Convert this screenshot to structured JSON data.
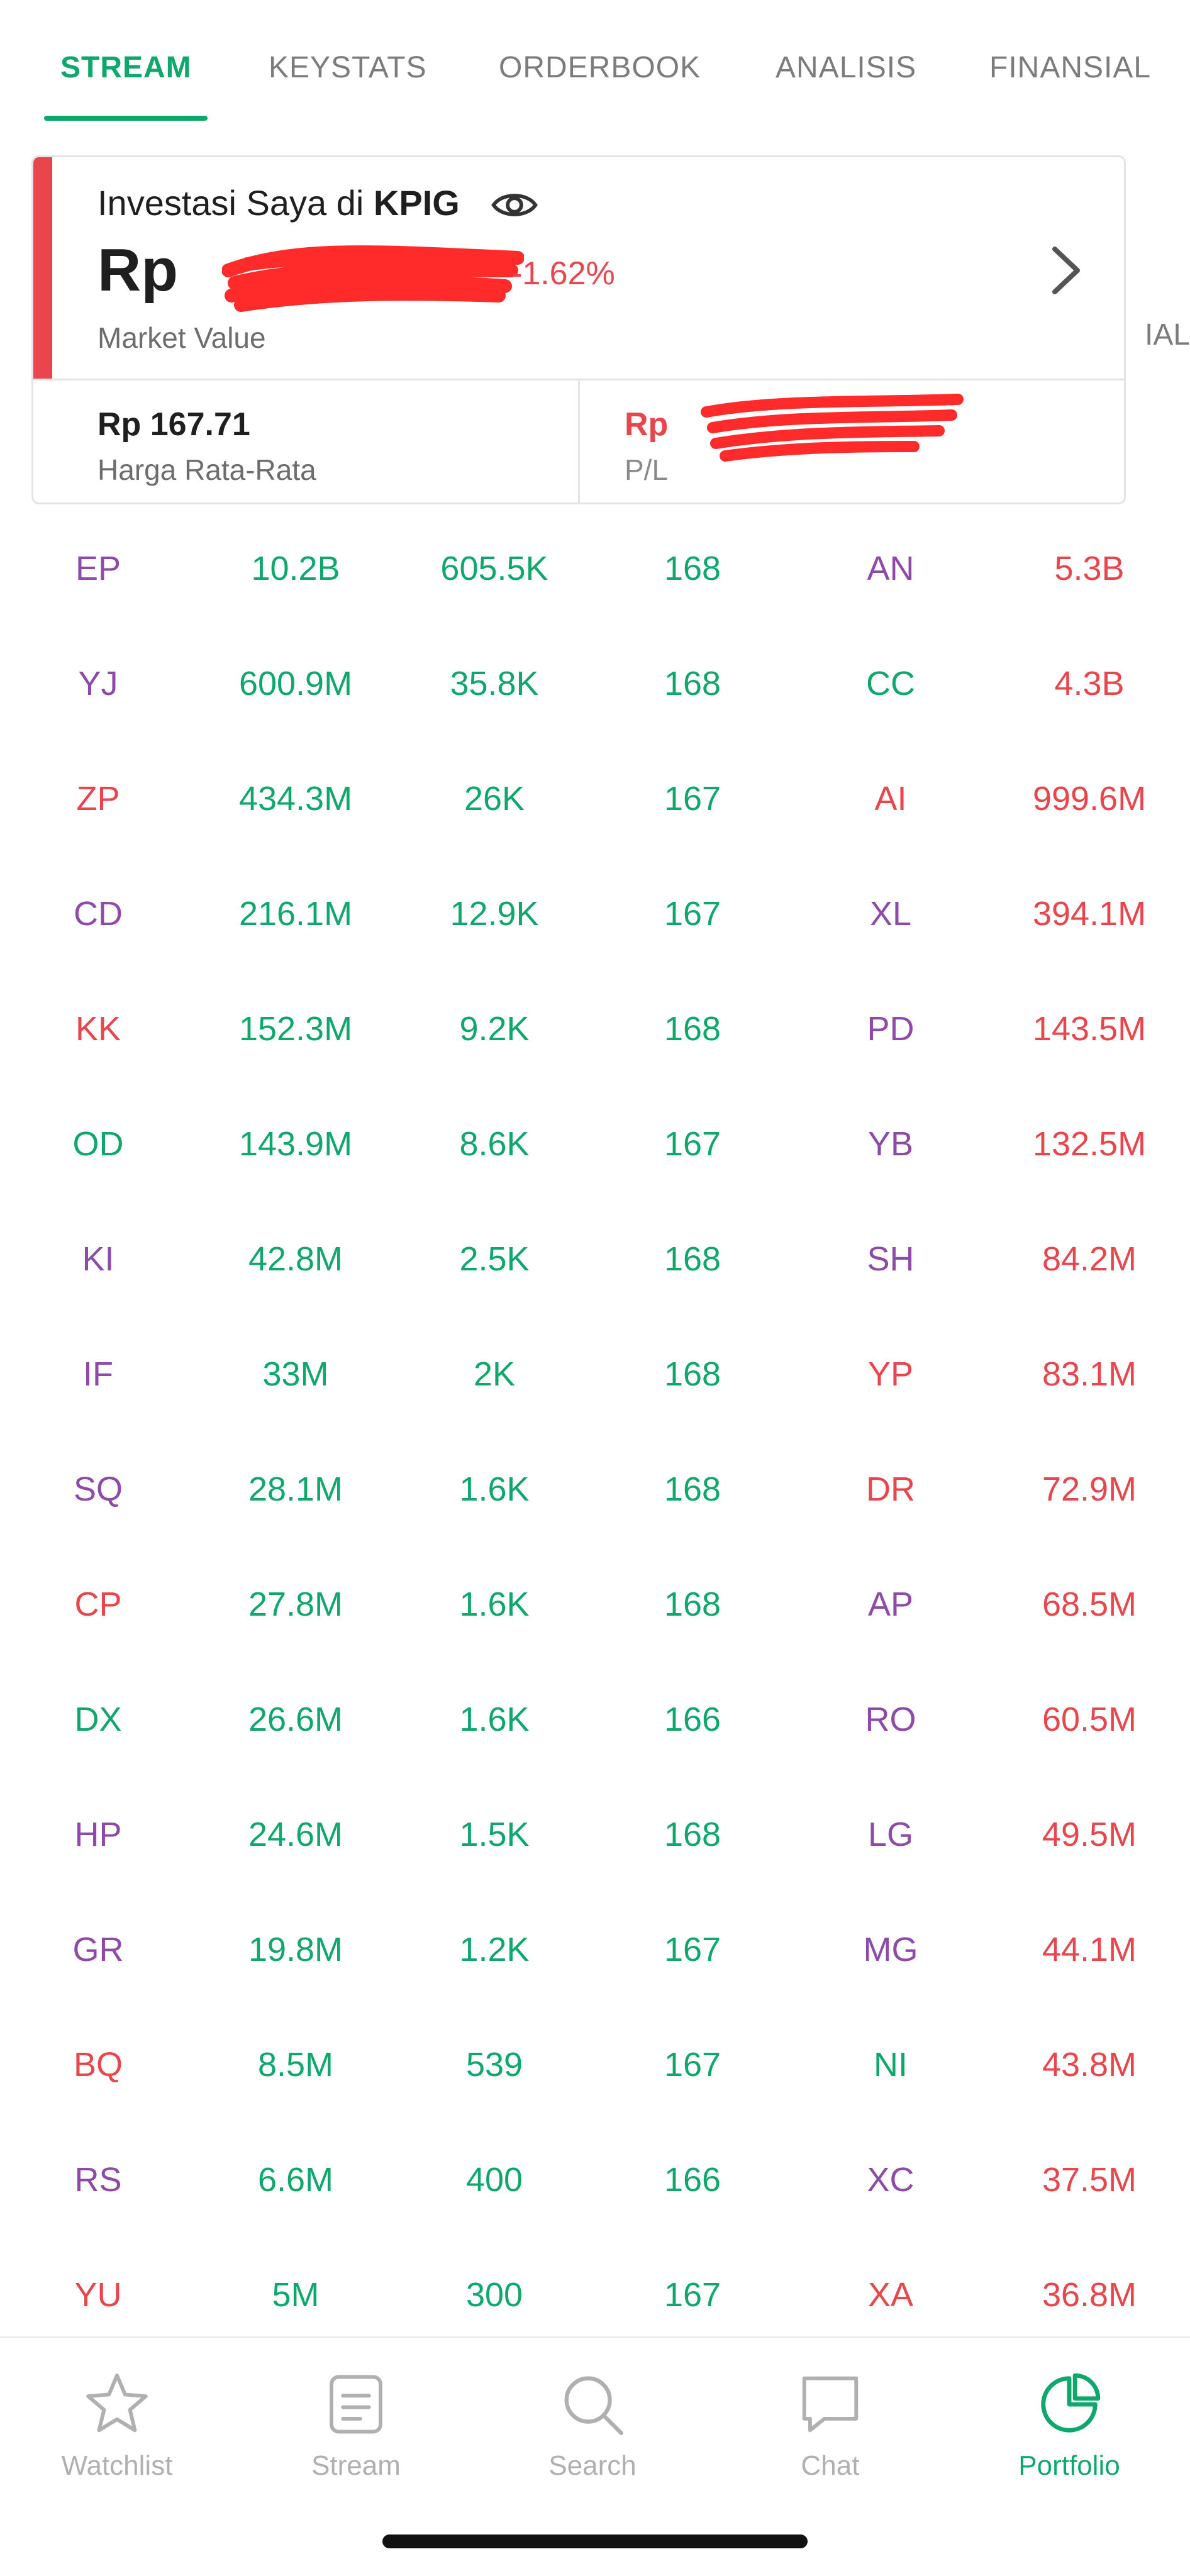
{
  "tabs": [
    {
      "label": "STREAM",
      "active": true
    },
    {
      "label": "KEYSTATS",
      "active": false
    },
    {
      "label": "ORDERBOOK",
      "active": false
    },
    {
      "label": "ANALISIS",
      "active": false
    },
    {
      "label": "FINANSIAL",
      "active": false
    }
  ],
  "clipped_tab_text": "IAL",
  "investment": {
    "title_prefix": "Investasi Saya di ",
    "ticker": "KPIG",
    "market_value_prefix": "Rp",
    "market_value_change": "-1.62%",
    "market_value_label": "Market Value",
    "avg_price_value": "Rp 167.71",
    "avg_price_label": "Harga Rata-Rata",
    "pl_prefix": "Rp",
    "pl_label": "P/L",
    "accent_color": "#e8454c"
  },
  "table": {
    "rows": [
      {
        "buyer": "EP",
        "buyer_color": "purple",
        "value": "10.2B",
        "lot": "605.5K",
        "price": "168",
        "seller": "AN",
        "seller_color": "purple",
        "seller_value": "5.3B"
      },
      {
        "buyer": "YJ",
        "buyer_color": "purple",
        "value": "600.9M",
        "lot": "35.8K",
        "price": "168",
        "seller": "CC",
        "seller_color": "green",
        "seller_value": "4.3B"
      },
      {
        "buyer": "ZP",
        "buyer_color": "red",
        "value": "434.3M",
        "lot": "26K",
        "price": "167",
        "seller": "AI",
        "seller_color": "red",
        "seller_value": "999.6M"
      },
      {
        "buyer": "CD",
        "buyer_color": "purple",
        "value": "216.1M",
        "lot": "12.9K",
        "price": "167",
        "seller": "XL",
        "seller_color": "purple",
        "seller_value": "394.1M"
      },
      {
        "buyer": "KK",
        "buyer_color": "red",
        "value": "152.3M",
        "lot": "9.2K",
        "price": "168",
        "seller": "PD",
        "seller_color": "purple",
        "seller_value": "143.5M"
      },
      {
        "buyer": "OD",
        "buyer_color": "green",
        "value": "143.9M",
        "lot": "8.6K",
        "price": "167",
        "seller": "YB",
        "seller_color": "purple",
        "seller_value": "132.5M"
      },
      {
        "buyer": "KI",
        "buyer_color": "purple",
        "value": "42.8M",
        "lot": "2.5K",
        "price": "168",
        "seller": "SH",
        "seller_color": "purple",
        "seller_value": "84.2M"
      },
      {
        "buyer": "IF",
        "buyer_color": "purple",
        "value": "33M",
        "lot": "2K",
        "price": "168",
        "seller": "YP",
        "seller_color": "red",
        "seller_value": "83.1M"
      },
      {
        "buyer": "SQ",
        "buyer_color": "purple",
        "value": "28.1M",
        "lot": "1.6K",
        "price": "168",
        "seller": "DR",
        "seller_color": "red",
        "seller_value": "72.9M"
      },
      {
        "buyer": "CP",
        "buyer_color": "red",
        "value": "27.8M",
        "lot": "1.6K",
        "price": "168",
        "seller": "AP",
        "seller_color": "purple",
        "seller_value": "68.5M"
      },
      {
        "buyer": "DX",
        "buyer_color": "green",
        "value": "26.6M",
        "lot": "1.6K",
        "price": "166",
        "seller": "RO",
        "seller_color": "purple",
        "seller_value": "60.5M"
      },
      {
        "buyer": "HP",
        "buyer_color": "purple",
        "value": "24.6M",
        "lot": "1.5K",
        "price": "168",
        "seller": "LG",
        "seller_color": "purple",
        "seller_value": "49.5M"
      },
      {
        "buyer": "GR",
        "buyer_color": "purple",
        "value": "19.8M",
        "lot": "1.2K",
        "price": "167",
        "seller": "MG",
        "seller_color": "purple",
        "seller_value": "44.1M"
      },
      {
        "buyer": "BQ",
        "buyer_color": "red",
        "value": "8.5M",
        "lot": "539",
        "price": "167",
        "seller": "NI",
        "seller_color": "green",
        "seller_value": "43.8M"
      },
      {
        "buyer": "RS",
        "buyer_color": "purple",
        "value": "6.6M",
        "lot": "400",
        "price": "166",
        "seller": "XC",
        "seller_color": "purple",
        "seller_value": "37.5M"
      },
      {
        "buyer": "YU",
        "buyer_color": "red",
        "value": "5M",
        "lot": "300",
        "price": "167",
        "seller": "XA",
        "seller_color": "red",
        "seller_value": "36.8M"
      }
    ]
  },
  "bottom_nav": [
    {
      "label": "Watchlist",
      "icon": "star-icon",
      "active": false
    },
    {
      "label": "Stream",
      "icon": "stream-icon",
      "active": false
    },
    {
      "label": "Search",
      "icon": "search-icon",
      "active": false
    },
    {
      "label": "Chat",
      "icon": "chat-icon",
      "active": false
    },
    {
      "label": "Portfolio",
      "icon": "pie-chart-icon",
      "active": true
    }
  ],
  "colors": {
    "green": "#0fa76b",
    "red": "#e8454c",
    "purple": "#8e4aa8"
  }
}
